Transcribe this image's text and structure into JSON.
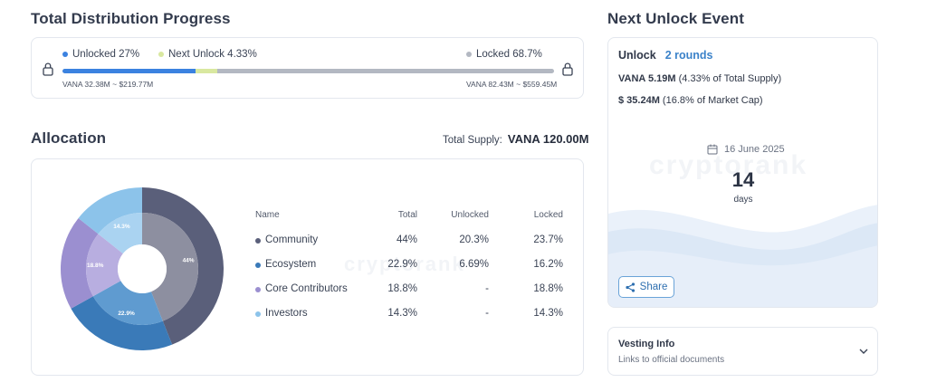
{
  "progress": {
    "title": "Total Distribution Progress",
    "legend": {
      "unlocked": "Unlocked 27%",
      "next_unlock": "Next Unlock 4.33%",
      "locked": "Locked 68.7%"
    },
    "unlocked_fraction": 0.27,
    "next_unlock_fraction": 0.0433,
    "locked_fraction": 0.687,
    "unlocked_amount": "VANA 32.38M ~ $219.77M",
    "locked_amount": "VANA 82.43M ~ $559.45M",
    "colors": {
      "unlocked": "#3b82e0",
      "next_unlock": "#d9e8a0",
      "locked": "#b3b8c2"
    }
  },
  "allocation": {
    "title": "Allocation",
    "total_supply_label": "Total Supply:",
    "total_supply_value": "VANA 120.00M",
    "headers": {
      "name": "Name",
      "total": "Total",
      "unlocked": "Unlocked",
      "locked": "Locked"
    },
    "rows": [
      {
        "name": "Community",
        "total": "44%",
        "unlocked": "20.3%",
        "locked": "23.7%",
        "color": "#5a5f7a"
      },
      {
        "name": "Ecosystem",
        "total": "22.9%",
        "unlocked": "6.69%",
        "locked": "16.2%",
        "color": "#3a7ab8"
      },
      {
        "name": "Core Contributors",
        "total": "18.8%",
        "unlocked": "-",
        "locked": "18.8%",
        "color": "#9b8fd0"
      },
      {
        "name": "Investors",
        "total": "14.3%",
        "unlocked": "-",
        "locked": "14.3%",
        "color": "#8cc3ea"
      }
    ],
    "pie_labels": {
      "community": "44%",
      "ecosystem": "22.9%",
      "core": "18.8%",
      "investors": "14.3%"
    }
  },
  "chart_data": {
    "type": "pie",
    "categories": [
      "Community",
      "Ecosystem",
      "Core Contributors",
      "Investors"
    ],
    "values": [
      44,
      22.9,
      18.8,
      14.3
    ]
  },
  "unlock": {
    "title": "Next Unlock Event",
    "label": "Unlock",
    "rounds": "2 rounds",
    "amount_bold": "VANA 5.19M",
    "amount_rest": " (4.33% of Total Supply)",
    "usd_bold": "$ 35.24M",
    "usd_rest": " (16.8% of Market Cap)",
    "date": "16 June 2025",
    "days_num": "14",
    "days_label": "days",
    "share": "Share"
  },
  "vesting": {
    "title": "Vesting Info",
    "subtitle": "Links to official documents"
  },
  "icons": {
    "lock": "lock-icon",
    "calendar": "calendar-icon",
    "share": "share-icon",
    "chevron": "chevron-down-icon"
  }
}
